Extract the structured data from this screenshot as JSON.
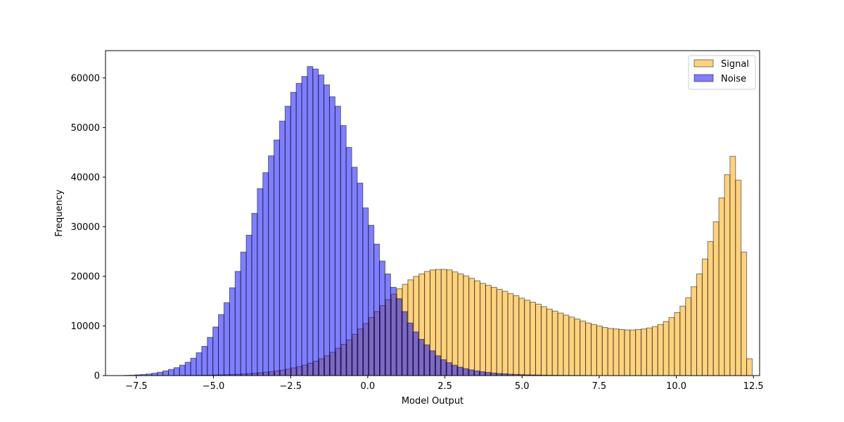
{
  "chart_data": {
    "type": "bar",
    "xlabel": "Model Output",
    "ylabel": "Frequency",
    "xlim": [
      -8.5,
      12.7
    ],
    "ylim": [
      0,
      65500
    ],
    "bin_width": 0.18,
    "x_ticks": [
      -7.5,
      -5.0,
      -2.5,
      0.0,
      2.5,
      5.0,
      7.5,
      10.0,
      12.5
    ],
    "x_tick_labels": [
      "−7.5",
      "−5.0",
      "−2.5",
      "0.0",
      "2.5",
      "5.0",
      "7.5",
      "10.0",
      "12.5"
    ],
    "y_ticks": [
      0,
      10000,
      20000,
      30000,
      40000,
      50000,
      60000
    ],
    "y_tick_labels": [
      "0",
      "10000",
      "20000",
      "30000",
      "40000",
      "50000",
      "60000"
    ],
    "legend_position": "top-right",
    "series": [
      {
        "name": "Signal",
        "color": "#FFA500",
        "opacity": 0.5,
        "bins": [
          [
            -6.62,
            10
          ],
          [
            -6.44,
            10
          ],
          [
            -6.26,
            15
          ],
          [
            -6.08,
            20
          ],
          [
            -5.9,
            30
          ],
          [
            -5.72,
            40
          ],
          [
            -5.54,
            55
          ],
          [
            -5.36,
            70
          ],
          [
            -5.18,
            90
          ],
          [
            -5.0,
            120
          ],
          [
            -4.82,
            150
          ],
          [
            -4.64,
            180
          ],
          [
            -4.46,
            220
          ],
          [
            -4.28,
            270
          ],
          [
            -4.1,
            330
          ],
          [
            -3.92,
            400
          ],
          [
            -3.74,
            480
          ],
          [
            -3.56,
            570
          ],
          [
            -3.38,
            680
          ],
          [
            -3.2,
            800
          ],
          [
            -3.02,
            950
          ],
          [
            -2.84,
            1100
          ],
          [
            -2.66,
            1300
          ],
          [
            -2.48,
            1550
          ],
          [
            -2.3,
            1800
          ],
          [
            -2.12,
            2100
          ],
          [
            -1.94,
            2500
          ],
          [
            -1.76,
            2900
          ],
          [
            -1.58,
            3400
          ],
          [
            -1.4,
            4000
          ],
          [
            -1.22,
            4700
          ],
          [
            -1.04,
            5500
          ],
          [
            -0.86,
            6300
          ],
          [
            -0.68,
            7200
          ],
          [
            -0.5,
            8300
          ],
          [
            -0.32,
            9400
          ],
          [
            -0.14,
            10500
          ],
          [
            0.04,
            11700
          ],
          [
            0.22,
            12900
          ],
          [
            0.4,
            14100
          ],
          [
            0.58,
            15300
          ],
          [
            0.76,
            16400
          ],
          [
            0.94,
            17500
          ],
          [
            1.12,
            18400
          ],
          [
            1.3,
            19300
          ],
          [
            1.48,
            20000
          ],
          [
            1.66,
            20500
          ],
          [
            1.84,
            21000
          ],
          [
            2.02,
            21300
          ],
          [
            2.2,
            21400
          ],
          [
            2.38,
            21400
          ],
          [
            2.56,
            21300
          ],
          [
            2.74,
            20900
          ],
          [
            2.92,
            20500
          ],
          [
            3.1,
            20100
          ],
          [
            3.28,
            19600
          ],
          [
            3.46,
            19100
          ],
          [
            3.64,
            18600
          ],
          [
            3.82,
            18200
          ],
          [
            4.0,
            17800
          ],
          [
            4.18,
            17400
          ],
          [
            4.36,
            17000
          ],
          [
            4.54,
            16500
          ],
          [
            4.72,
            16100
          ],
          [
            4.9,
            15600
          ],
          [
            5.08,
            15200
          ],
          [
            5.26,
            14800
          ],
          [
            5.44,
            14400
          ],
          [
            5.62,
            13900
          ],
          [
            5.8,
            13400
          ],
          [
            5.98,
            13000
          ],
          [
            6.16,
            12600
          ],
          [
            6.34,
            12200
          ],
          [
            6.52,
            11800
          ],
          [
            6.7,
            11400
          ],
          [
            6.88,
            11000
          ],
          [
            7.06,
            10600
          ],
          [
            7.24,
            10300
          ],
          [
            7.42,
            10000
          ],
          [
            7.6,
            9700
          ],
          [
            7.78,
            9500
          ],
          [
            7.96,
            9400
          ],
          [
            8.14,
            9300
          ],
          [
            8.32,
            9200
          ],
          [
            8.5,
            9200
          ],
          [
            8.68,
            9300
          ],
          [
            8.86,
            9400
          ],
          [
            9.04,
            9600
          ],
          [
            9.22,
            9900
          ],
          [
            9.4,
            10300
          ],
          [
            9.58,
            10900
          ],
          [
            9.76,
            11700
          ],
          [
            9.94,
            12700
          ],
          [
            10.12,
            14000
          ],
          [
            10.3,
            15700
          ],
          [
            10.48,
            17900
          ],
          [
            10.66,
            20500
          ],
          [
            10.84,
            23500
          ],
          [
            11.02,
            27000
          ],
          [
            11.2,
            31000
          ],
          [
            11.38,
            35800
          ],
          [
            11.56,
            40500
          ],
          [
            11.74,
            44200
          ],
          [
            11.92,
            39400
          ],
          [
            12.1,
            24900
          ],
          [
            12.28,
            3400
          ]
        ]
      },
      {
        "name": "Noise",
        "color": "#0000FF",
        "opacity": 0.5,
        "bins": [
          [
            -7.9,
            40
          ],
          [
            -7.72,
            80
          ],
          [
            -7.54,
            150
          ],
          [
            -7.36,
            230
          ],
          [
            -7.18,
            320
          ],
          [
            -7.0,
            480
          ],
          [
            -6.82,
            680
          ],
          [
            -6.64,
            950
          ],
          [
            -6.46,
            1250
          ],
          [
            -6.28,
            1600
          ],
          [
            -6.1,
            2100
          ],
          [
            -5.92,
            2700
          ],
          [
            -5.74,
            3500
          ],
          [
            -5.56,
            4600
          ],
          [
            -5.38,
            5900
          ],
          [
            -5.2,
            7700
          ],
          [
            -5.02,
            9800
          ],
          [
            -4.84,
            12300
          ],
          [
            -4.66,
            14700
          ],
          [
            -4.48,
            17700
          ],
          [
            -4.3,
            21000
          ],
          [
            -4.12,
            24900
          ],
          [
            -3.94,
            28300
          ],
          [
            -3.76,
            32700
          ],
          [
            -3.58,
            37700
          ],
          [
            -3.4,
            40900
          ],
          [
            -3.22,
            44300
          ],
          [
            -3.04,
            47500
          ],
          [
            -2.86,
            51300
          ],
          [
            -2.68,
            54300
          ],
          [
            -2.5,
            57100
          ],
          [
            -2.32,
            58900
          ],
          [
            -2.14,
            60300
          ],
          [
            -1.96,
            62300
          ],
          [
            -1.78,
            61800
          ],
          [
            -1.6,
            60600
          ],
          [
            -1.42,
            58600
          ],
          [
            -1.24,
            56200
          ],
          [
            -1.06,
            54300
          ],
          [
            -0.88,
            50400
          ],
          [
            -0.7,
            46000
          ],
          [
            -0.52,
            42000
          ],
          [
            -0.34,
            38800
          ],
          [
            -0.16,
            33800
          ],
          [
            0.02,
            30300
          ],
          [
            0.2,
            26500
          ],
          [
            0.38,
            23100
          ],
          [
            0.56,
            20500
          ],
          [
            0.74,
            17800
          ],
          [
            0.92,
            15500
          ],
          [
            1.1,
            12900
          ],
          [
            1.28,
            10600
          ],
          [
            1.46,
            8800
          ],
          [
            1.64,
            7300
          ],
          [
            1.82,
            6200
          ],
          [
            2.0,
            5000
          ],
          [
            2.18,
            4000
          ],
          [
            2.36,
            3200
          ],
          [
            2.54,
            2600
          ],
          [
            2.72,
            2100
          ],
          [
            2.9,
            1700
          ],
          [
            3.08,
            1400
          ],
          [
            3.26,
            1150
          ],
          [
            3.44,
            950
          ],
          [
            3.62,
            780
          ],
          [
            3.8,
            640
          ],
          [
            3.98,
            520
          ],
          [
            4.16,
            430
          ],
          [
            4.34,
            350
          ],
          [
            4.52,
            290
          ],
          [
            4.7,
            240
          ],
          [
            4.88,
            200
          ],
          [
            5.06,
            160
          ],
          [
            5.24,
            130
          ],
          [
            5.42,
            110
          ],
          [
            5.6,
            90
          ],
          [
            5.78,
            70
          ],
          [
            5.96,
            55
          ],
          [
            6.14,
            45
          ],
          [
            6.32,
            35
          ],
          [
            6.5,
            25
          ],
          [
            6.68,
            20
          ],
          [
            6.86,
            15
          ],
          [
            7.04,
            10
          ]
        ]
      }
    ]
  }
}
